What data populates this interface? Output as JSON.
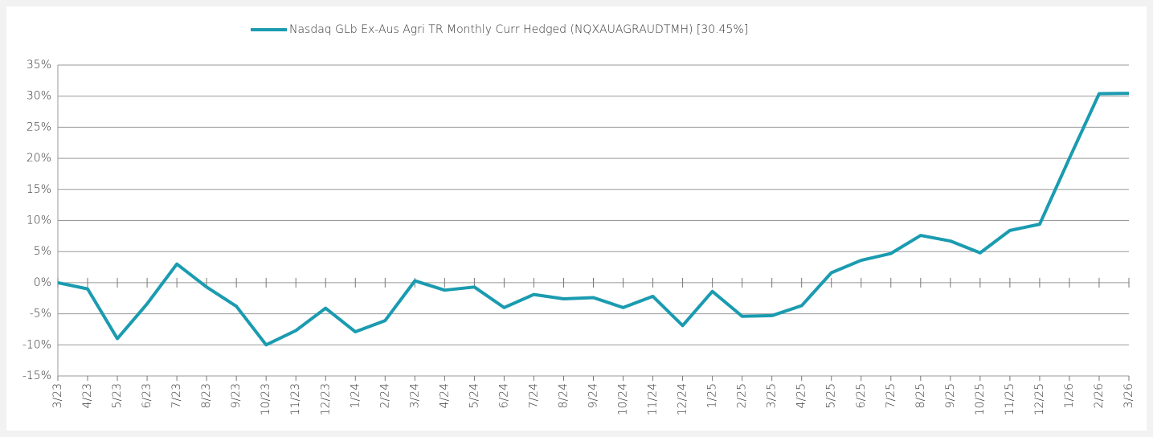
{
  "chart_data": {
    "type": "line",
    "categories": [
      "3/23",
      "4/23",
      "5/23",
      "6/23",
      "7/23",
      "8/23",
      "9/23",
      "10/23",
      "11/23",
      "12/23",
      "1/24",
      "2/24",
      "3/24",
      "4/24",
      "5/24",
      "6/24",
      "7/24",
      "8/24",
      "9/24",
      "10/24",
      "11/24",
      "12/24",
      "1/25",
      "2/25",
      "3/25",
      "4/25",
      "5/25",
      "6/25",
      "7/25",
      "8/25",
      "9/25",
      "10/25",
      "11/25",
      "12/25",
      "1/26",
      "2/26",
      "3/26"
    ],
    "series": [
      {
        "name": "Nasdaq GLb Ex-Aus Agri TR Monthly Curr Hedged (NQXAUAGRAUDTMH) [30.45%]",
        "color": "#1a9bb0",
        "values": [
          0,
          -1.0,
          -9.0,
          -3.4,
          3.0,
          -0.7,
          -3.8,
          -10.0,
          -7.7,
          -4.1,
          -7.9,
          -6.1,
          0.3,
          -1.2,
          -0.7,
          -4.0,
          -1.9,
          -2.6,
          -2.4,
          -4.0,
          -2.2,
          -6.9,
          -1.4,
          -5.4,
          -5.3,
          -3.7,
          1.6,
          3.6,
          4.7,
          7.6,
          6.7,
          4.8,
          8.4,
          9.4,
          20.0,
          30.4,
          30.45
        ]
      }
    ],
    "ylim": [
      -15,
      35
    ],
    "yticks": [
      {
        "value": -15,
        "label": "-15%"
      },
      {
        "value": -10,
        "label": "-10%"
      },
      {
        "value": -5,
        "label": "-5%"
      },
      {
        "value": 0,
        "label": "0%"
      },
      {
        "value": 5,
        "label": "5%"
      },
      {
        "value": 10,
        "label": "10%"
      },
      {
        "value": 15,
        "label": "15%"
      },
      {
        "value": 20,
        "label": "20%"
      },
      {
        "value": 25,
        "label": "25%"
      },
      {
        "value": 30,
        "label": "30%"
      },
      {
        "value": 35,
        "label": "35%"
      }
    ],
    "grid": true,
    "legend": "top"
  }
}
